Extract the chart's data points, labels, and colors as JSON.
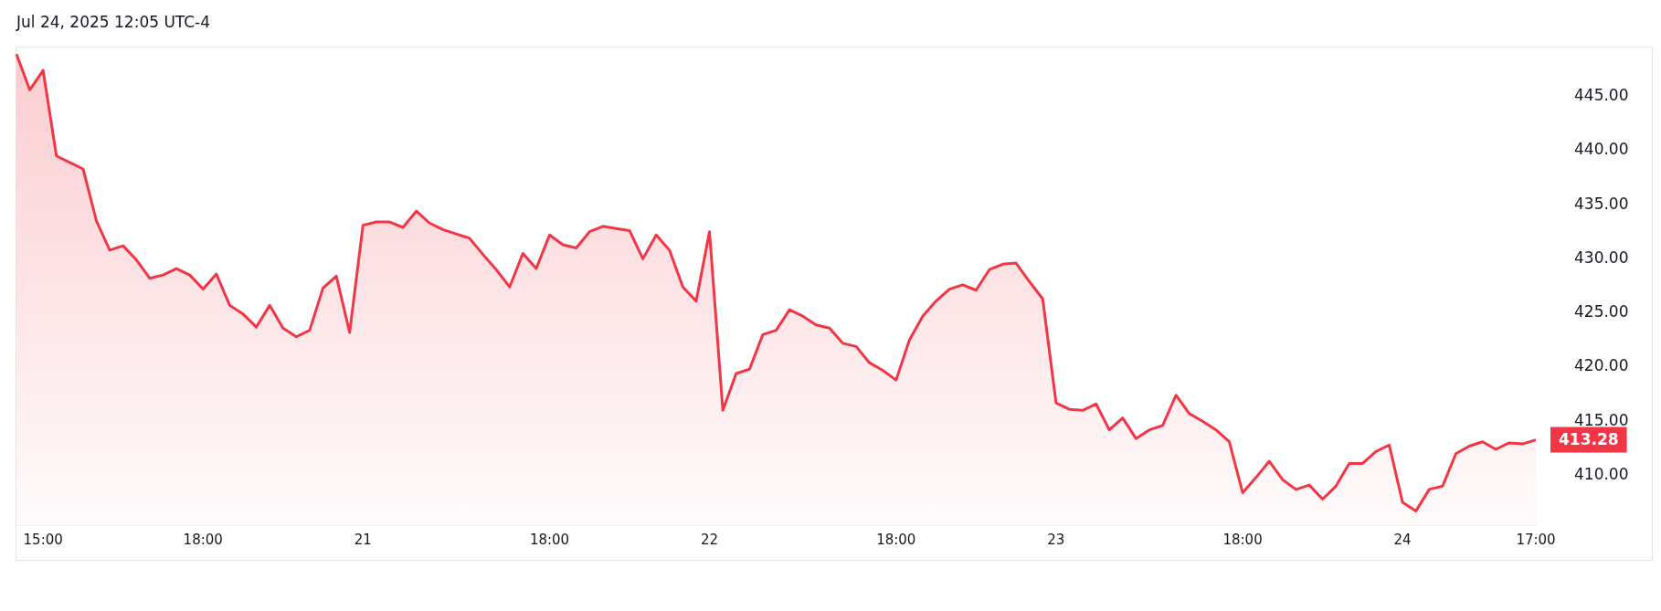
{
  "chart_data": {
    "type": "area",
    "annotations": [
      "Jul 24, 2025 12:05 UTC-4"
    ],
    "categories": [
      null,
      null,
      "15:00",
      null,
      null,
      null,
      null,
      null,
      null,
      null,
      null,
      null,
      null,
      null,
      "18:00",
      null,
      null,
      null,
      null,
      null,
      null,
      null,
      null,
      null,
      null,
      null,
      "21",
      null,
      null,
      null,
      null,
      null,
      null,
      null,
      null,
      null,
      null,
      null,
      null,
      null,
      "18:00",
      null,
      null,
      null,
      null,
      null,
      null,
      null,
      null,
      null,
      null,
      null,
      "22",
      null,
      null,
      null,
      null,
      null,
      null,
      null,
      null,
      null,
      null,
      null,
      null,
      null,
      "18:00",
      null,
      null,
      null,
      null,
      null,
      null,
      null,
      null,
      null,
      null,
      null,
      "23",
      null,
      null,
      null,
      null,
      null,
      null,
      null,
      null,
      null,
      null,
      null,
      null,
      null,
      "18:00",
      null,
      null,
      null,
      null,
      null,
      null,
      null,
      null,
      null,
      null,
      null,
      "24",
      null,
      null,
      null,
      null,
      null,
      null,
      null,
      null,
      null,
      "17:00"
    ],
    "series": [
      {
        "color": "#f23645",
        "values": [
          448.9,
          445.6,
          447.4,
          439.5,
          438.9,
          438.3,
          433.5,
          430.8,
          431.2,
          429.9,
          428.2,
          428.5,
          429.1,
          428.5,
          427.2,
          428.6,
          425.7,
          424.9,
          423.7,
          425.7,
          423.6,
          422.8,
          423.4,
          427.3,
          428.4,
          423.2,
          433.1,
          433.4,
          433.4,
          432.9,
          434.4,
          433.3,
          432.7,
          432.3,
          431.9,
          430.4,
          429.0,
          427.4,
          430.5,
          429.1,
          432.2,
          431.3,
          431.0,
          432.5,
          433.0,
          432.8,
          432.6,
          430.0,
          432.2,
          430.8,
          427.4,
          426.1,
          432.5,
          416.0,
          419.4,
          419.8,
          423.0,
          423.4,
          425.3,
          424.7,
          423.9,
          423.6,
          422.2,
          421.9,
          420.4,
          419.7,
          418.8,
          422.5,
          424.7,
          426.1,
          427.2,
          427.6,
          427.1,
          429.0,
          429.5,
          429.6,
          427.9,
          426.3,
          416.7,
          416.1,
          416.0,
          416.6,
          414.2,
          415.3,
          413.4,
          414.2,
          414.6,
          417.4,
          415.7,
          415.0,
          414.2,
          413.1,
          408.4,
          409.8,
          411.3,
          409.6,
          408.7,
          409.1,
          407.8,
          409.0,
          411.1,
          411.1,
          412.2,
          412.8,
          407.5,
          406.7,
          408.7,
          409.0,
          412.0,
          412.7,
          413.1,
          412.4,
          413.0,
          412.9,
          413.28
        ],
        "value_labels": [
          null,
          null,
          null,
          null,
          null,
          null,
          null,
          null,
          null,
          null,
          null,
          null,
          null,
          null,
          null,
          null,
          null,
          null,
          null,
          null,
          null,
          null,
          null,
          null,
          null,
          null,
          null,
          null,
          null,
          null,
          null,
          null,
          null,
          null,
          null,
          null,
          null,
          null,
          null,
          null,
          null,
          null,
          null,
          null,
          null,
          null,
          null,
          null,
          null,
          null,
          null,
          null,
          null,
          null,
          null,
          null,
          null,
          null,
          null,
          null,
          null,
          null,
          null,
          null,
          null,
          null,
          null,
          null,
          null,
          null,
          null,
          null,
          null,
          null,
          null,
          null,
          null,
          null,
          null,
          null,
          null,
          null,
          null,
          null,
          null,
          null,
          null,
          null,
          null,
          null,
          null,
          null,
          null,
          null,
          null,
          null,
          null,
          null,
          null,
          null,
          null,
          null,
          null,
          null,
          null,
          null,
          null,
          null,
          null,
          null,
          null,
          null,
          null,
          null,
          "413.28"
        ]
      }
    ],
    "ylim": [
      405.4,
      449.5
    ],
    "yticks": [
      {
        "value": 410,
        "label": "410.00"
      },
      {
        "value": 415,
        "label": "415.00"
      },
      {
        "value": 420,
        "label": "420.00"
      },
      {
        "value": 425,
        "label": "425.00"
      },
      {
        "value": 430,
        "label": "430.00"
      },
      {
        "value": 435,
        "label": "435.00"
      },
      {
        "value": 440,
        "label": "440.00"
      },
      {
        "value": 445,
        "label": "445.00"
      }
    ]
  }
}
